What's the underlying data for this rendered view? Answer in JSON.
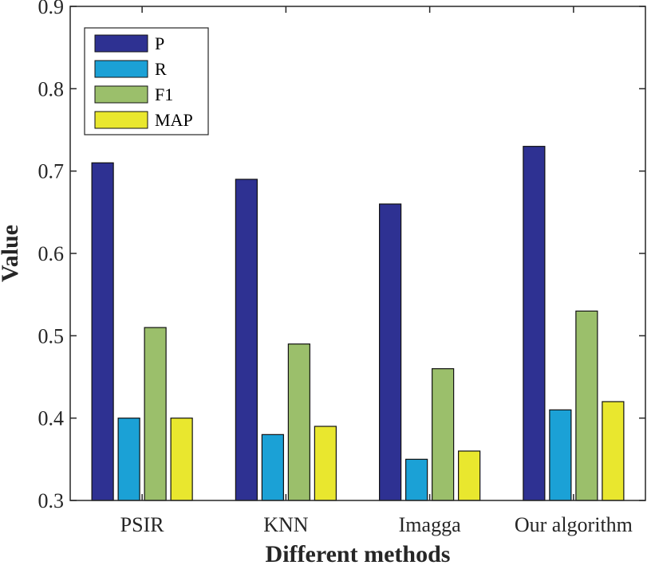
{
  "chart_data": {
    "type": "bar",
    "xlabel": "Different methods",
    "ylabel": "Value",
    "ylim": [
      0.3,
      0.9
    ],
    "yticks": [
      "0.3",
      "0.4",
      "0.5",
      "0.6",
      "0.7",
      "0.8",
      "0.9"
    ],
    "categories": [
      "PSIR",
      "KNN",
      "Imagga",
      "Our algorithm"
    ],
    "series": [
      {
        "name": "P",
        "color": "#2e3192",
        "values": [
          0.71,
          0.69,
          0.66,
          0.73
        ]
      },
      {
        "name": "R",
        "color": "#1ba1d6",
        "values": [
          0.4,
          0.38,
          0.35,
          0.41
        ]
      },
      {
        "name": "F1",
        "color": "#9bbf6b",
        "values": [
          0.51,
          0.49,
          0.46,
          0.53
        ]
      },
      {
        "name": "MAP",
        "color": "#e9e72e",
        "values": [
          0.4,
          0.39,
          0.36,
          0.42
        ]
      }
    ],
    "legend_position": "top-left",
    "grid": false
  }
}
